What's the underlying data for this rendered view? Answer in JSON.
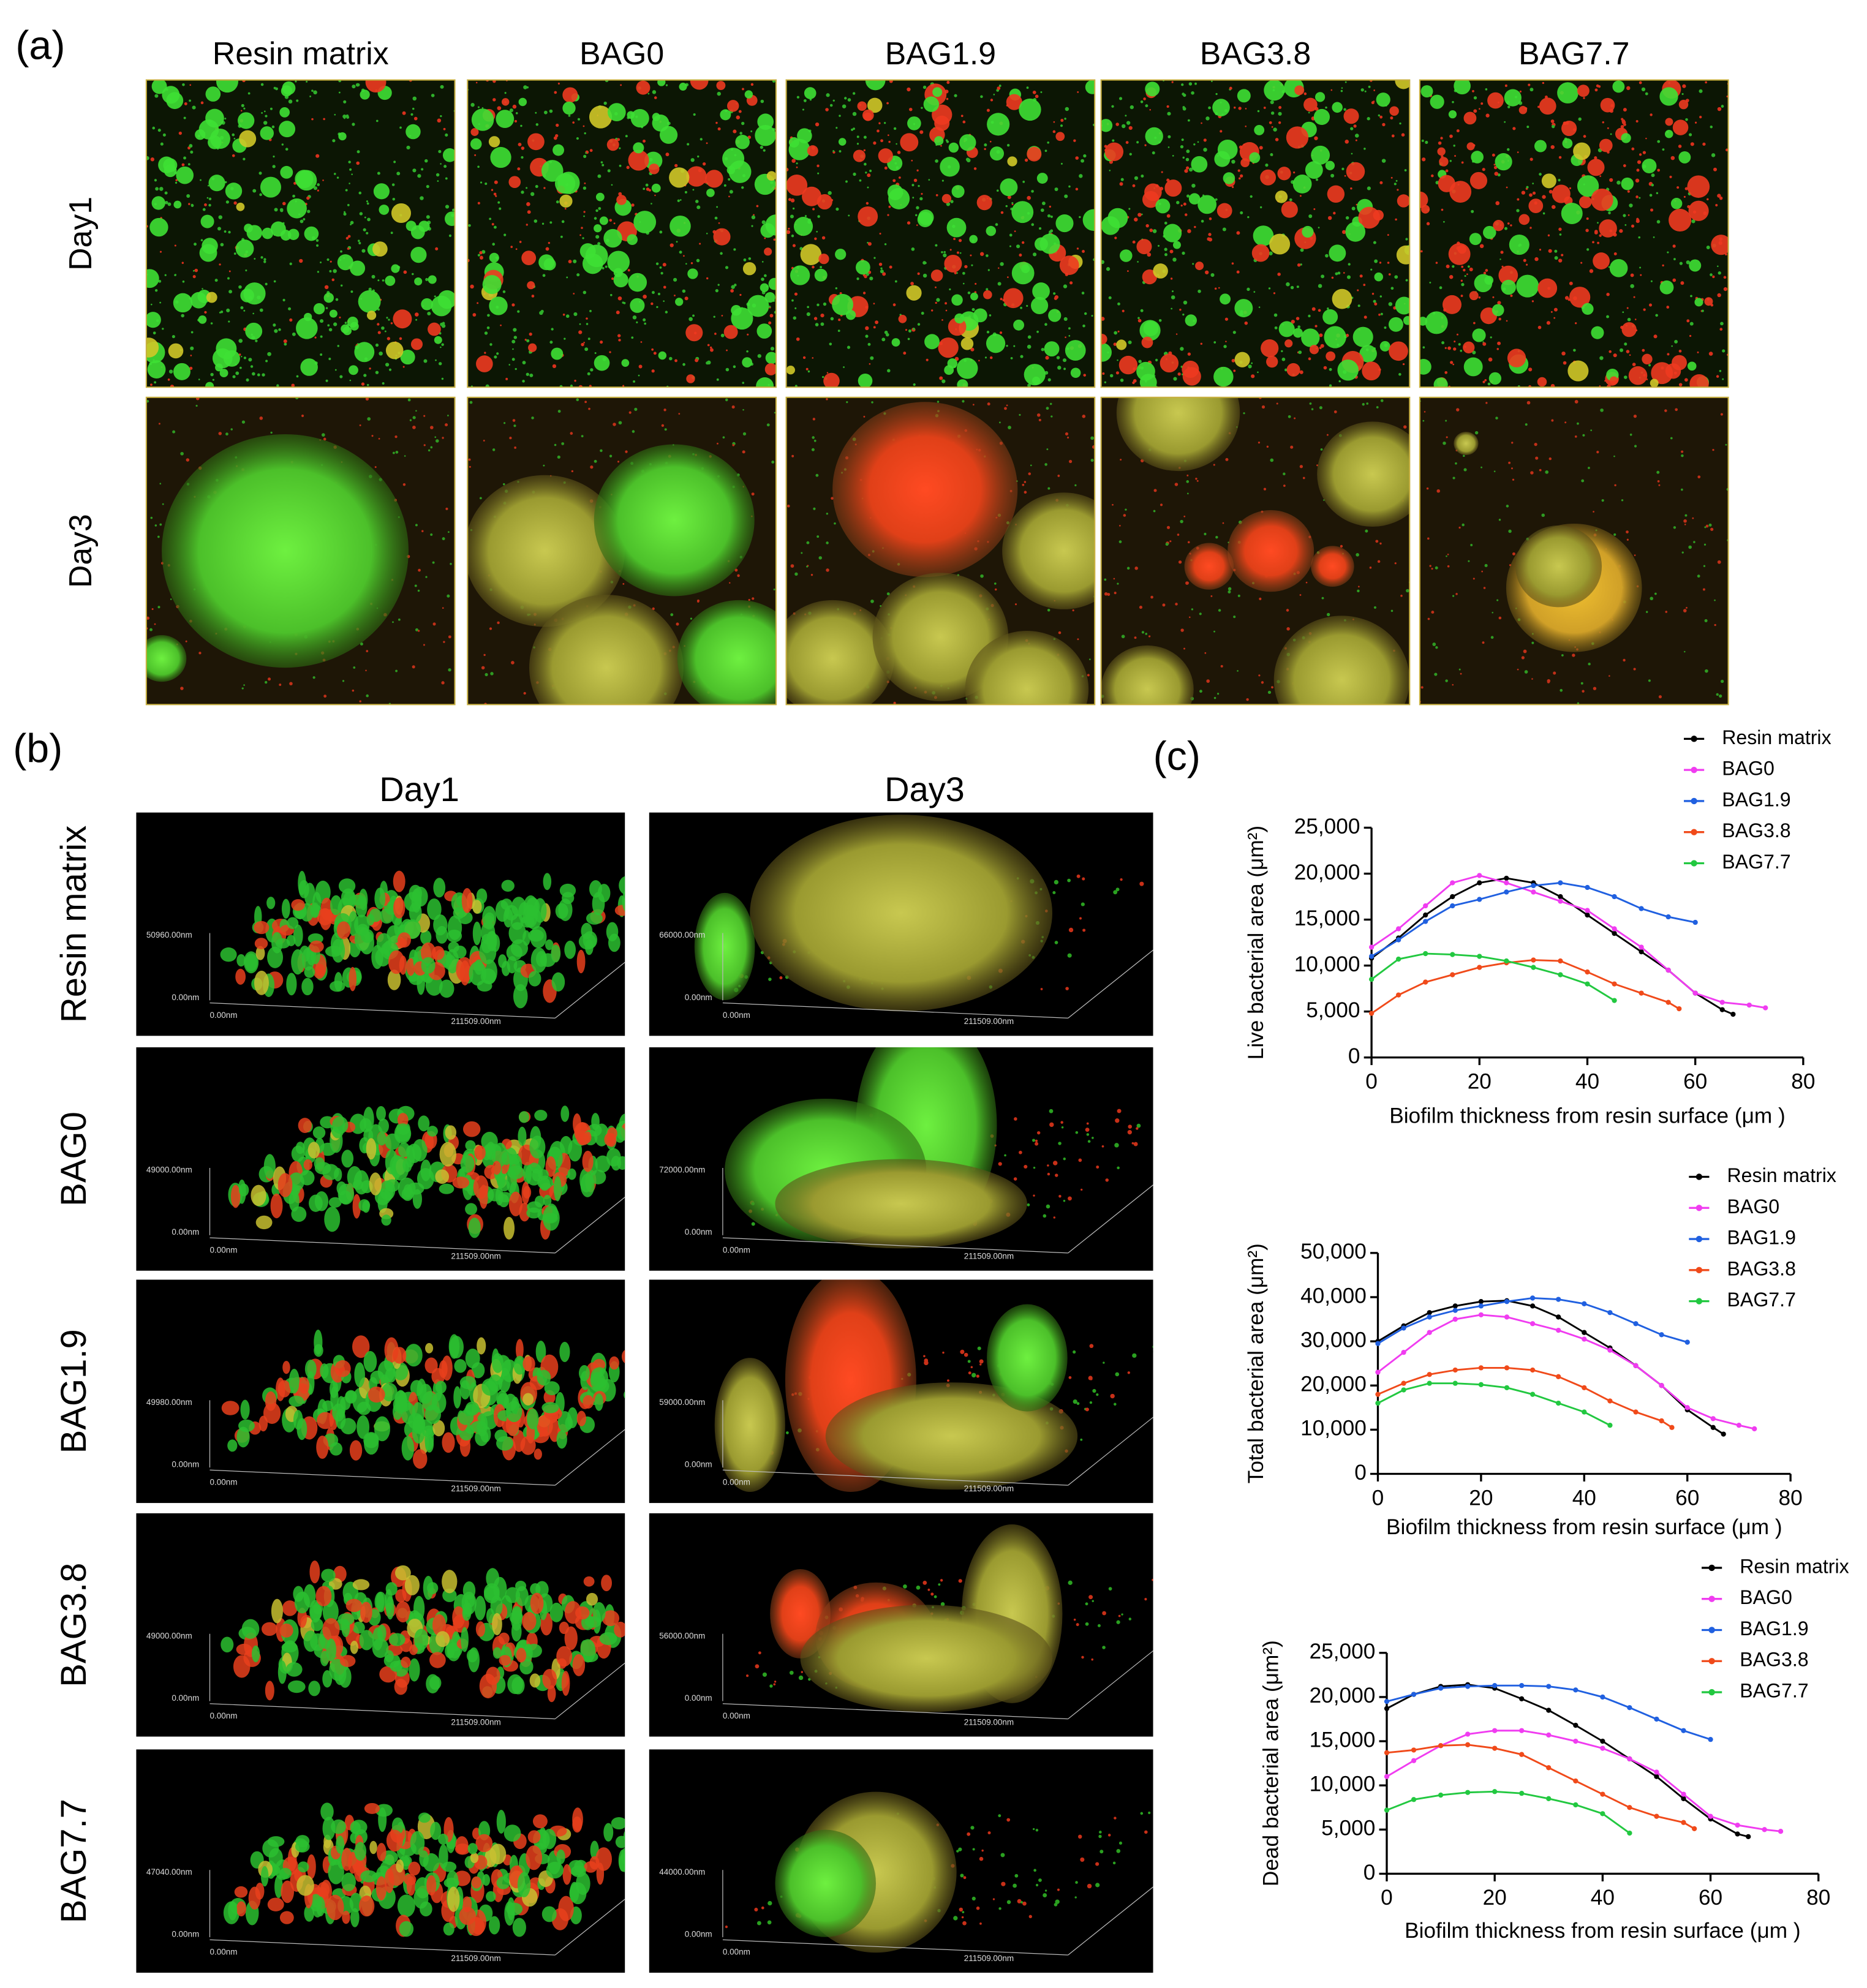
{
  "panel_a": {
    "label": "(a)",
    "columns": [
      "Resin matrix",
      "BAG0",
      "BAG1.9",
      "BAG3.8",
      "BAG7.7"
    ],
    "rows": [
      "Day1",
      "Day3"
    ]
  },
  "panel_b": {
    "label": "(b)",
    "columns": [
      "Day1",
      "Day3"
    ],
    "rows": [
      {
        "name": "Resin matrix",
        "day1": {
          "z_max": "50960.00nm",
          "z_min": "0.00nm",
          "x_min": "0.00nm",
          "x_max": "211509.00nm"
        },
        "day3": {
          "z_max": "66000.00nm",
          "z_min": "0.00nm",
          "x_min": "0.00nm",
          "x_max": "211509.00nm"
        }
      },
      {
        "name": "BAG0",
        "day1": {
          "z_max": "49000.00nm",
          "z_min": "0.00nm",
          "x_min": "0.00nm",
          "x_max": "211509.00nm"
        },
        "day3": {
          "z_max": "72000.00nm",
          "z_min": "0.00nm",
          "x_min": "0.00nm",
          "x_max": "211509.00nm"
        }
      },
      {
        "name": "BAG1.9",
        "day1": {
          "z_max": "49980.00nm",
          "z_min": "0.00nm",
          "x_min": "0.00nm",
          "x_max": "211509.00nm"
        },
        "day3": {
          "z_max": "59000.00nm",
          "z_min": "0.00nm",
          "x_min": "0.00nm",
          "x_max": "211509.00nm"
        }
      },
      {
        "name": "BAG3.8",
        "day1": {
          "z_max": "49000.00nm",
          "z_min": "0.00nm",
          "x_min": "0.00nm",
          "x_max": "211509.00nm"
        },
        "day3": {
          "z_max": "56000.00nm",
          "z_min": "0.00nm",
          "x_min": "0.00nm",
          "x_max": "211509.00nm"
        }
      },
      {
        "name": "BAG7.7",
        "day1": {
          "z_max": "47040.00nm",
          "z_min": "0.00nm",
          "x_min": "0.00nm",
          "x_max": "211509.00nm"
        },
        "day3": {
          "z_max": "44000.00nm",
          "z_min": "0.00nm",
          "x_min": "0.00nm",
          "x_max": "211509.00nm"
        }
      }
    ]
  },
  "panel_c": {
    "label": "(c)"
  },
  "chart_data": [
    {
      "type": "line",
      "y_label": "Live bacterial area (μm²)",
      "x_label": "Biofilm thickness from resin surface (μm )",
      "legend": "above",
      "xlim": [
        0,
        80
      ],
      "xticks": [
        0,
        20,
        40,
        60,
        80
      ],
      "ylim": [
        0,
        25000
      ],
      "yticks": [
        0,
        {
          "value": 5000,
          "label": "5,000"
        },
        {
          "value": 10000,
          "label": "10,000"
        },
        {
          "value": 15000,
          "label": "15,000"
        },
        {
          "value": 20000,
          "label": "20,000"
        },
        {
          "value": 25000,
          "label": "25,000"
        }
      ],
      "series": [
        {
          "name": "Resin matrix",
          "color": "#000000",
          "x": [
            0,
            5,
            10,
            15,
            20,
            25,
            30,
            35,
            40,
            45,
            50,
            55,
            60,
            65,
            67
          ],
          "values": [
            10800,
            13000,
            15500,
            17500,
            19000,
            19500,
            19000,
            17500,
            15500,
            13500,
            11500,
            9500,
            7000,
            5200,
            4700
          ]
        },
        {
          "name": "BAG0",
          "color": "#f03cf0",
          "x": [
            0,
            5,
            10,
            15,
            20,
            25,
            30,
            35,
            40,
            45,
            50,
            55,
            60,
            65,
            70,
            73
          ],
          "values": [
            12000,
            14000,
            16500,
            19000,
            19800,
            19000,
            18000,
            17000,
            16000,
            14000,
            12000,
            9500,
            7000,
            6000,
            5700,
            5400
          ]
        },
        {
          "name": "BAG1.9",
          "color": "#2060e0",
          "x": [
            0,
            5,
            10,
            15,
            20,
            25,
            30,
            35,
            40,
            45,
            50,
            55,
            60
          ],
          "values": [
            11000,
            12800,
            14800,
            16500,
            17200,
            18000,
            18700,
            19000,
            18500,
            17500,
            16200,
            15300,
            14700
          ]
        },
        {
          "name": "BAG3.8",
          "color": "#f04a1a",
          "x": [
            0,
            5,
            10,
            15,
            20,
            25,
            30,
            35,
            40,
            45,
            50,
            55,
            57
          ],
          "values": [
            4800,
            6800,
            8200,
            9000,
            9800,
            10300,
            10600,
            10500,
            9300,
            8000,
            7000,
            6000,
            5300
          ]
        },
        {
          "name": "BAG7.7",
          "color": "#22c840",
          "x": [
            0,
            5,
            10,
            15,
            20,
            25,
            30,
            35,
            40,
            45
          ],
          "values": [
            8500,
            10700,
            11300,
            11200,
            11000,
            10500,
            9800,
            9000,
            8000,
            6200
          ]
        }
      ]
    },
    {
      "type": "line",
      "y_label": "Total bacterial area (μm²)",
      "x_label": "Biofilm thickness from resin surface (μm )",
      "legend": "above",
      "xlim": [
        0,
        80
      ],
      "xticks": [
        0,
        20,
        40,
        60,
        80
      ],
      "ylim": [
        0,
        50000
      ],
      "yticks": [
        0,
        {
          "value": 10000,
          "label": "10,000"
        },
        {
          "value": 20000,
          "label": "20,000"
        },
        {
          "value": 30000,
          "label": "30,000"
        },
        {
          "value": 40000,
          "label": "40,000"
        },
        {
          "value": 50000,
          "label": "50,000"
        }
      ],
      "series": [
        {
          "name": "Resin matrix",
          "color": "#000000",
          "x": [
            0,
            5,
            10,
            15,
            20,
            25,
            30,
            35,
            40,
            45,
            50,
            55,
            60,
            65,
            67
          ],
          "values": [
            30000,
            33500,
            36500,
            38000,
            39000,
            39200,
            38000,
            35500,
            32000,
            28500,
            24500,
            20000,
            14500,
            10500,
            9000
          ]
        },
        {
          "name": "BAG0",
          "color": "#f03cf0",
          "x": [
            0,
            5,
            10,
            15,
            20,
            25,
            30,
            35,
            40,
            45,
            50,
            55,
            60,
            65,
            70,
            73
          ],
          "values": [
            23000,
            27500,
            32000,
            35000,
            36000,
            35500,
            34000,
            32500,
            30500,
            28000,
            24500,
            20000,
            15000,
            12500,
            11000,
            10200
          ]
        },
        {
          "name": "BAG1.9",
          "color": "#2060e0",
          "x": [
            0,
            5,
            10,
            15,
            20,
            25,
            30,
            35,
            40,
            45,
            50,
            55,
            60
          ],
          "values": [
            29500,
            33000,
            35500,
            37000,
            38000,
            39000,
            39800,
            39500,
            38500,
            36500,
            34000,
            31500,
            29800
          ]
        },
        {
          "name": "BAG3.8",
          "color": "#f04a1a",
          "x": [
            0,
            5,
            10,
            15,
            20,
            25,
            30,
            35,
            40,
            45,
            50,
            55,
            57
          ],
          "values": [
            18000,
            20500,
            22500,
            23500,
            24000,
            24000,
            23500,
            22000,
            19500,
            16500,
            14000,
            12000,
            10500
          ]
        },
        {
          "name": "BAG7.7",
          "color": "#22c840",
          "x": [
            0,
            5,
            10,
            15,
            20,
            25,
            30,
            35,
            40,
            45
          ],
          "values": [
            16000,
            19000,
            20500,
            20500,
            20200,
            19500,
            18000,
            16000,
            14000,
            11000
          ]
        }
      ]
    },
    {
      "type": "line",
      "y_label": "Dead bacterial area (μm²)",
      "x_label": "Biofilm thickness from resin surface (μm )",
      "legend": "above",
      "xlim": [
        0,
        80
      ],
      "xticks": [
        0,
        20,
        40,
        60,
        80
      ],
      "ylim": [
        0,
        25000
      ],
      "yticks": [
        0,
        {
          "value": 5000,
          "label": "5,000"
        },
        {
          "value": 10000,
          "label": "10,000"
        },
        {
          "value": 15000,
          "label": "15,000"
        },
        {
          "value": 20000,
          "label": "20,000"
        },
        {
          "value": 25000,
          "label": "25,000"
        }
      ],
      "series": [
        {
          "name": "Resin matrix",
          "color": "#000000",
          "x": [
            0,
            5,
            10,
            15,
            20,
            25,
            30,
            35,
            40,
            45,
            50,
            55,
            60,
            65,
            67
          ],
          "values": [
            18700,
            20300,
            21200,
            21400,
            21000,
            19800,
            18500,
            16800,
            15000,
            13000,
            11000,
            8500,
            6200,
            4500,
            4200
          ]
        },
        {
          "name": "BAG0",
          "color": "#f03cf0",
          "x": [
            0,
            5,
            10,
            15,
            20,
            25,
            30,
            35,
            40,
            45,
            50,
            55,
            60,
            65,
            70,
            73
          ],
          "values": [
            11000,
            12800,
            14500,
            15800,
            16200,
            16200,
            15700,
            15000,
            14200,
            13000,
            11500,
            9000,
            6500,
            5500,
            5000,
            4800
          ]
        },
        {
          "name": "BAG1.9",
          "color": "#2060e0",
          "x": [
            0,
            5,
            10,
            15,
            20,
            25,
            30,
            35,
            40,
            45,
            50,
            55,
            60
          ],
          "values": [
            19500,
            20300,
            21000,
            21200,
            21300,
            21300,
            21200,
            20800,
            20000,
            18800,
            17500,
            16200,
            15200
          ]
        },
        {
          "name": "BAG3.8",
          "color": "#f04a1a",
          "x": [
            0,
            5,
            10,
            15,
            20,
            25,
            30,
            35,
            40,
            45,
            50,
            55,
            57
          ],
          "values": [
            13700,
            14000,
            14500,
            14600,
            14200,
            13500,
            12000,
            10500,
            9000,
            7500,
            6500,
            5800,
            5100
          ]
        },
        {
          "name": "BAG7.7",
          "color": "#22c840",
          "x": [
            0,
            5,
            10,
            15,
            20,
            25,
            30,
            35,
            40,
            45
          ],
          "values": [
            7200,
            8400,
            8900,
            9200,
            9300,
            9100,
            8500,
            7800,
            6800,
            4600
          ]
        }
      ]
    }
  ]
}
